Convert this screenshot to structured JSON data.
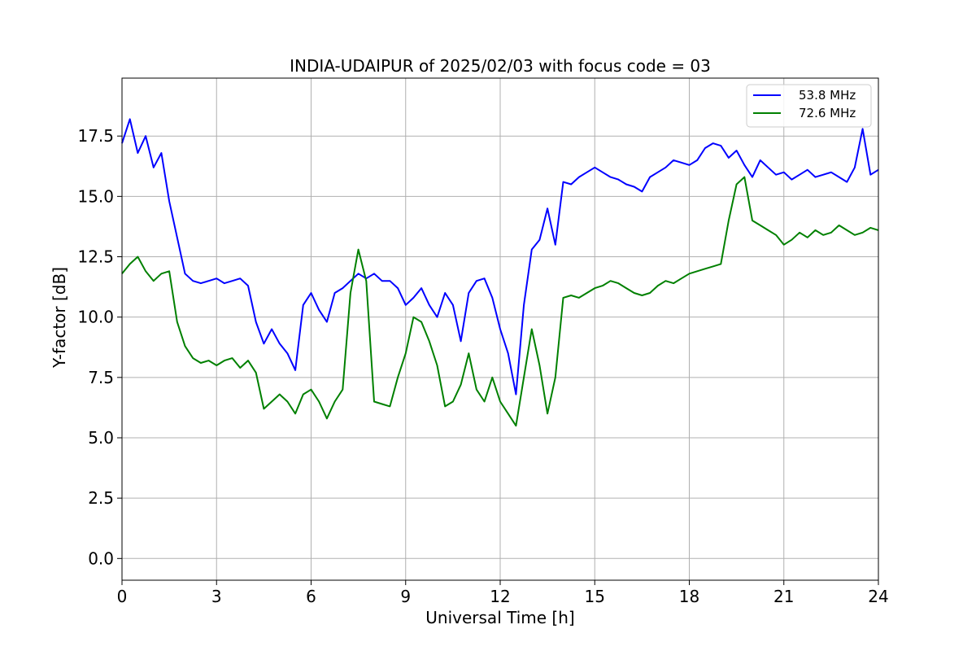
{
  "chart_data": {
    "type": "line",
    "title": "INDIA-UDAIPUR of 2025/02/03 with focus code = 03",
    "xlabel": "Universal Time [h]",
    "ylabel": "Y-factor [dB]",
    "xlim": [
      0,
      24
    ],
    "ylim": [
      -0.9,
      19.9
    ],
    "xticks": [
      0,
      3,
      6,
      9,
      12,
      15,
      18,
      21,
      24
    ],
    "yticks": [
      0.0,
      2.5,
      5.0,
      7.5,
      10.0,
      12.5,
      15.0,
      17.5
    ],
    "x_tick_labels": [
      "0",
      "3",
      "6",
      "9",
      "12",
      "15",
      "18",
      "21",
      "24"
    ],
    "y_tick_labels": [
      "0.0",
      "2.5",
      "5.0",
      "7.5",
      "10.0",
      "12.5",
      "15.0",
      "17.5"
    ],
    "grid": true,
    "legend_position": "top-right",
    "x": [
      0,
      0.25,
      0.5,
      0.75,
      1.0,
      1.25,
      1.5,
      1.75,
      2.0,
      2.25,
      2.5,
      2.75,
      3.0,
      3.25,
      3.5,
      3.75,
      4.0,
      4.25,
      4.5,
      4.75,
      5.0,
      5.25,
      5.5,
      5.75,
      6.0,
      6.25,
      6.5,
      6.75,
      7.0,
      7.25,
      7.5,
      7.75,
      8.0,
      8.25,
      8.5,
      8.75,
      9.0,
      9.25,
      9.5,
      9.75,
      10.0,
      10.25,
      10.5,
      10.75,
      11.0,
      11.25,
      11.5,
      11.75,
      12.0,
      12.25,
      12.5,
      12.75,
      13.0,
      13.25,
      13.5,
      13.75,
      14.0,
      14.25,
      14.5,
      14.75,
      15.0,
      15.25,
      15.5,
      15.75,
      16.0,
      16.25,
      16.5,
      16.75,
      17.0,
      17.25,
      17.5,
      17.75,
      18.0,
      18.25,
      18.5,
      18.75,
      19.0,
      19.25,
      19.5,
      19.75,
      20.0,
      20.25,
      20.5,
      20.75,
      21.0,
      21.25,
      21.5,
      21.75,
      22.0,
      22.25,
      22.5,
      22.75,
      23.0,
      23.25,
      23.5,
      23.75,
      24.0
    ],
    "series": [
      {
        "name": "53.8 MHz",
        "color": "#0000ff",
        "values": [
          17.2,
          18.2,
          16.8,
          17.5,
          16.2,
          16.8,
          14.8,
          13.3,
          11.8,
          11.5,
          11.4,
          11.5,
          11.6,
          11.4,
          11.5,
          11.6,
          11.3,
          9.8,
          8.9,
          9.5,
          8.9,
          8.5,
          7.8,
          10.5,
          11.0,
          10.3,
          9.8,
          11.0,
          11.2,
          11.5,
          11.8,
          11.6,
          11.8,
          11.5,
          11.5,
          11.2,
          10.5,
          10.8,
          11.2,
          10.5,
          10.0,
          11.0,
          10.5,
          9.0,
          11.0,
          11.5,
          11.6,
          10.8,
          9.5,
          8.5,
          6.8,
          10.5,
          12.8,
          13.2,
          14.5,
          13.0,
          15.6,
          15.5,
          15.8,
          16.0,
          16.2,
          16.0,
          15.8,
          15.7,
          15.5,
          15.4,
          15.2,
          15.8,
          16.0,
          16.2,
          16.5,
          16.4,
          16.3,
          16.5,
          17.0,
          17.2,
          17.1,
          16.6,
          16.9,
          16.3,
          15.8,
          16.5,
          16.2,
          15.9,
          16.0,
          15.7,
          15.9,
          16.1,
          15.8,
          15.9,
          16.0,
          15.8,
          15.6,
          16.2,
          17.8,
          15.9,
          16.1
        ]
      },
      {
        "name": "72.6 MHz",
        "color": "#008000",
        "values": [
          11.8,
          12.2,
          12.5,
          11.9,
          11.5,
          11.8,
          11.9,
          9.8,
          8.8,
          8.3,
          8.1,
          8.2,
          8.0,
          8.2,
          8.3,
          7.9,
          8.2,
          7.7,
          6.2,
          6.5,
          6.8,
          6.5,
          6.0,
          6.8,
          7.0,
          6.5,
          5.8,
          6.5,
          7.0,
          11.0,
          12.8,
          11.5,
          6.5,
          6.4,
          6.3,
          7.5,
          8.5,
          10.0,
          9.8,
          9.0,
          8.0,
          6.3,
          6.5,
          7.2,
          8.5,
          7.0,
          6.5,
          7.5,
          6.5,
          6.0,
          5.5,
          7.5,
          9.5,
          8.0,
          6.0,
          7.5,
          10.8,
          10.9,
          10.8,
          11.0,
          11.2,
          11.3,
          11.5,
          11.4,
          11.2,
          11.0,
          10.9,
          11.0,
          11.3,
          11.5,
          11.4,
          11.6,
          11.8,
          11.9,
          12.0,
          12.1,
          12.2,
          14.0,
          15.5,
          15.8,
          14.0,
          13.8,
          13.6,
          13.4,
          13.0,
          13.2,
          13.5,
          13.3,
          13.6,
          13.4,
          13.5,
          13.8,
          13.6,
          13.4,
          13.5,
          13.7,
          13.6
        ]
      }
    ]
  }
}
